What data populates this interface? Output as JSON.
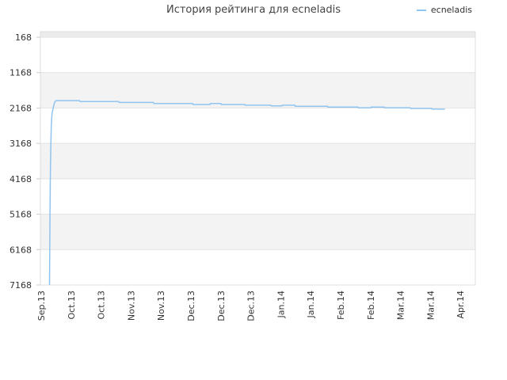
{
  "chart_data": {
    "type": "line",
    "title": "История рейтинга для ecneladis",
    "xlabel": "",
    "ylabel": "",
    "y_inverted": true,
    "ylim": [
      168,
      7168
    ],
    "yticks": [
      "168",
      "1168",
      "2168",
      "3168",
      "4168",
      "5168",
      "6168",
      "7168"
    ],
    "xticks": [
      "Sep.13",
      "Oct.13",
      "Oct.13",
      "Nov.13",
      "Nov.13",
      "Dec.13",
      "Dec.13",
      "Dec.13",
      "Jan.14",
      "Jan.14",
      "Feb.14",
      "Feb.14",
      "Mar.14",
      "Mar.14",
      "Apr.14"
    ],
    "xlim": [
      0,
      100
    ],
    "grid": true,
    "legend_position": "top-right",
    "series": [
      {
        "name": "ecneladis",
        "color": "#90c4f0",
        "points": [
          [
            2.1,
            7168
          ],
          [
            2.2,
            5200
          ],
          [
            2.3,
            4000
          ],
          [
            2.4,
            3200
          ],
          [
            2.5,
            2700
          ],
          [
            2.6,
            2450
          ],
          [
            2.7,
            2300
          ],
          [
            2.9,
            2200
          ],
          [
            3.1,
            2080
          ],
          [
            3.3,
            2000
          ],
          [
            3.6,
            1960
          ],
          [
            4.0,
            1960
          ],
          [
            9.0,
            1960
          ],
          [
            9.1,
            1985
          ],
          [
            18.0,
            1985
          ],
          [
            18.1,
            2010
          ],
          [
            26.0,
            2010
          ],
          [
            26.1,
            2040
          ],
          [
            35.0,
            2040
          ],
          [
            35.1,
            2070
          ],
          [
            39.0,
            2070
          ],
          [
            39.1,
            2040
          ],
          [
            41.5,
            2040
          ],
          [
            41.6,
            2070
          ],
          [
            47.0,
            2070
          ],
          [
            47.1,
            2090
          ],
          [
            53.0,
            2090
          ],
          [
            53.1,
            2110
          ],
          [
            55.5,
            2110
          ],
          [
            55.6,
            2090
          ],
          [
            58.5,
            2090
          ],
          [
            58.6,
            2120
          ],
          [
            66.0,
            2120
          ],
          [
            66.1,
            2140
          ],
          [
            73.0,
            2140
          ],
          [
            73.1,
            2160
          ],
          [
            76.0,
            2160
          ],
          [
            76.1,
            2140
          ],
          [
            79.0,
            2140
          ],
          [
            79.1,
            2160
          ],
          [
            85.0,
            2160
          ],
          [
            85.1,
            2180
          ],
          [
            90.0,
            2180
          ],
          [
            90.1,
            2200
          ],
          [
            93.0,
            2200
          ]
        ]
      }
    ]
  }
}
